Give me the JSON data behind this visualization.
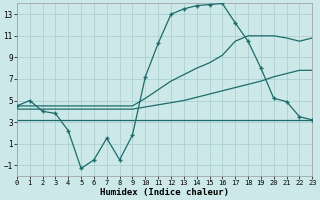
{
  "xlabel": "Humidex (Indice chaleur)",
  "xlim": [
    0,
    23
  ],
  "ylim": [
    -2,
    14
  ],
  "yticks": [
    -1,
    1,
    3,
    5,
    7,
    9,
    11,
    13
  ],
  "xticks": [
    0,
    1,
    2,
    3,
    4,
    5,
    6,
    7,
    8,
    9,
    10,
    11,
    12,
    13,
    14,
    15,
    16,
    17,
    18,
    19,
    20,
    21,
    22,
    23
  ],
  "bg_color": "#cce8e8",
  "grid_color": "#a8cccc",
  "line_color": "#1e6b6b",
  "line_top_x": [
    0,
    2,
    9,
    10,
    11,
    12,
    13,
    14,
    15,
    16,
    17,
    18,
    20,
    21,
    22,
    23
  ],
  "line_top_y": [
    4.5,
    4.5,
    4.5,
    5.2,
    6.0,
    6.8,
    7.4,
    8.0,
    8.5,
    9.2,
    10.5,
    11.0,
    11.0,
    10.8,
    10.5,
    10.8
  ],
  "line_mid_x": [
    0,
    2,
    9,
    10,
    11,
    12,
    13,
    14,
    15,
    16,
    17,
    18,
    19,
    20,
    21,
    22,
    23
  ],
  "line_mid_y": [
    4.2,
    4.2,
    4.2,
    4.4,
    4.6,
    4.8,
    5.0,
    5.3,
    5.6,
    5.9,
    6.2,
    6.5,
    6.8,
    7.2,
    7.5,
    7.8,
    7.8
  ],
  "line_bot_x": [
    0,
    2,
    9,
    10,
    11,
    12,
    13,
    14,
    15,
    16,
    17,
    18,
    19,
    20,
    21,
    22,
    23
  ],
  "line_bot_y": [
    3.2,
    3.2,
    3.2,
    3.2,
    3.2,
    3.2,
    3.2,
    3.2,
    3.2,
    3.2,
    3.2,
    3.2,
    3.2,
    3.2,
    3.2,
    3.2,
    3.2
  ],
  "curve_x": [
    0,
    1,
    2,
    3,
    4,
    5,
    6,
    7,
    8,
    9,
    10,
    11,
    12,
    13,
    14,
    15,
    16,
    17,
    18,
    19,
    20,
    21,
    22,
    23
  ],
  "curve_y": [
    4.5,
    5.0,
    4.0,
    3.8,
    2.2,
    -1.3,
    -0.5,
    1.5,
    -0.5,
    1.8,
    7.2,
    10.3,
    13.0,
    13.5,
    13.8,
    13.9,
    14.0,
    12.2,
    10.5,
    8.0,
    5.2,
    4.9,
    3.5,
    3.2
  ]
}
